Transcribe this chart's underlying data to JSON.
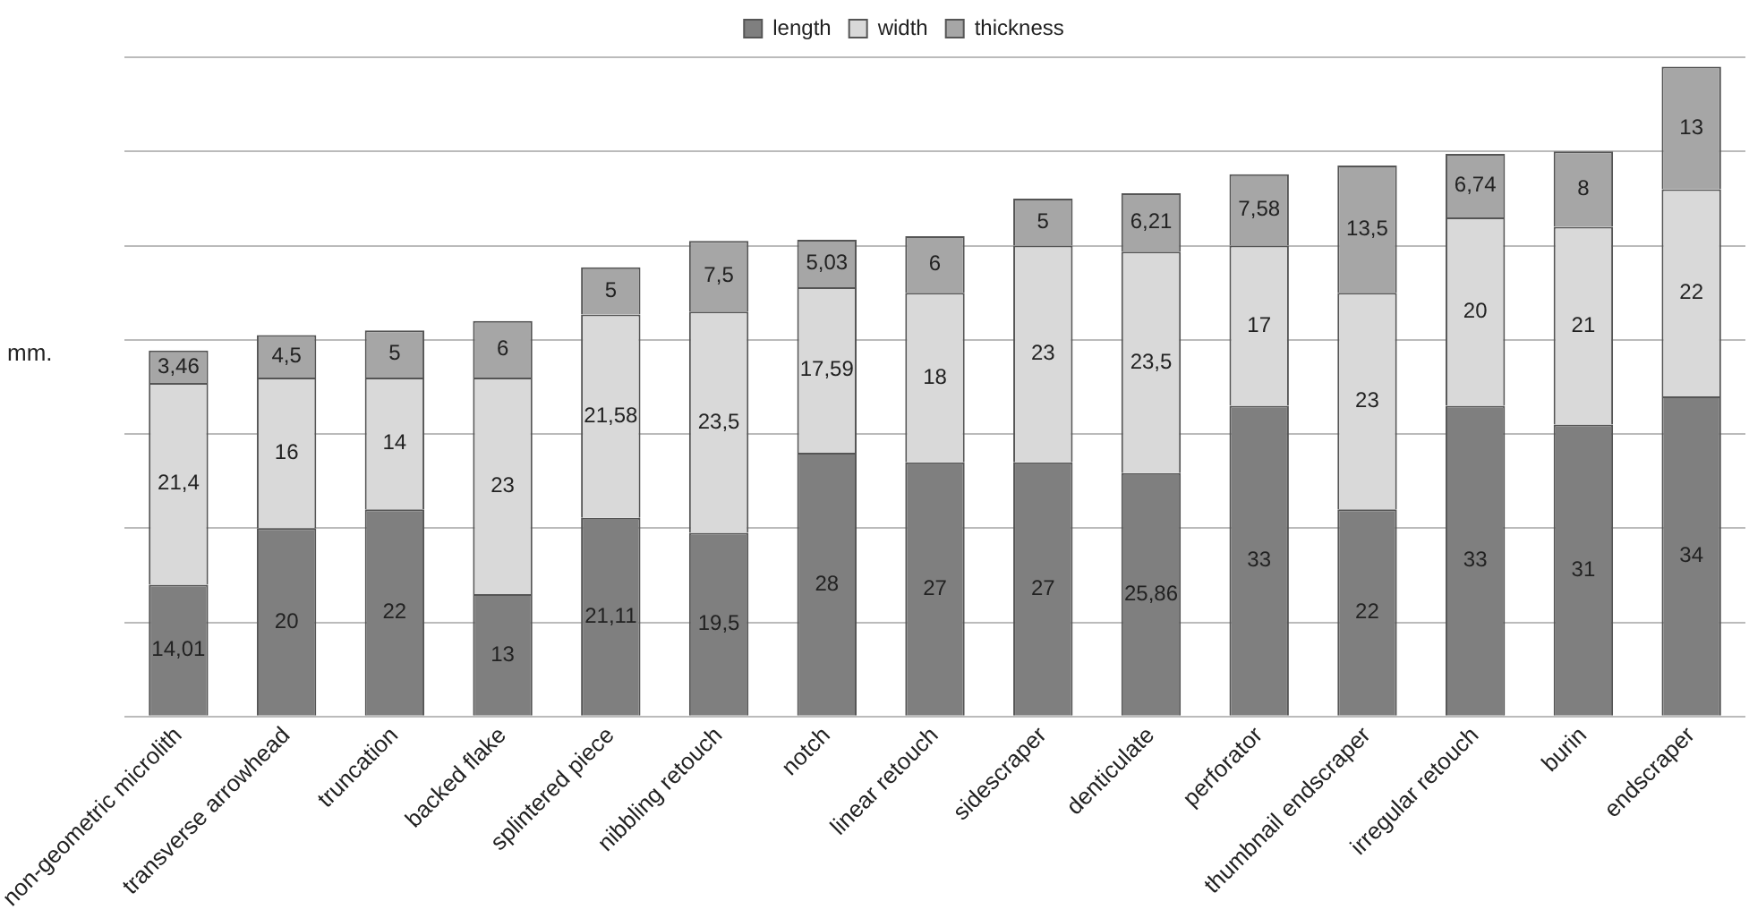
{
  "chart_data": {
    "type": "bar",
    "stacked": true,
    "ylabel": "mm.",
    "legend": "top",
    "grid": "y",
    "tick_labels": "x",
    "categories": [
      "non-geometric microlith",
      "transverse arrowhead",
      "truncation",
      "backed flake",
      "splintered piece",
      "nibbling retouch",
      "notch",
      "linear retouch",
      "sidescraper",
      "denticulate",
      "perforator",
      "thumbnail endscraper",
      "irregular retouch",
      "burin",
      "endscraper"
    ],
    "ylim": [
      0,
      70
    ],
    "series": [
      {
        "name": "length",
        "color": "#7f7f7f",
        "values": [
          14.01,
          20,
          22,
          13,
          21.11,
          19.5,
          28,
          27,
          27,
          25.86,
          33,
          22,
          33,
          31,
          34
        ],
        "value_labels": [
          "14,01",
          "20",
          "22",
          "13",
          "21,11",
          "19,5",
          "28",
          "27",
          "27",
          "25,86",
          "33",
          "22",
          "33",
          "31",
          "34"
        ]
      },
      {
        "name": "width",
        "color": "#d9d9d9",
        "values": [
          21.4,
          16,
          14,
          23,
          21.58,
          23.5,
          17.59,
          18,
          23,
          23.5,
          17,
          23,
          20,
          21,
          22
        ],
        "value_labels": [
          "21,4",
          "16",
          "14",
          "23",
          "21,58",
          "23,5",
          "17,59",
          "18",
          "23",
          "23,5",
          "17",
          "23",
          "20",
          "21",
          "22"
        ]
      },
      {
        "name": "thickness",
        "color": "#a6a6a6",
        "values": [
          3.46,
          4.5,
          5,
          6,
          5,
          7.5,
          5.03,
          6,
          5,
          6.21,
          7.58,
          13.5,
          6.74,
          8,
          13
        ],
        "value_labels": [
          "3,46",
          "4,5",
          "5",
          "6",
          "5",
          "7,5",
          "5,03",
          "6",
          "5",
          "6,21",
          "7,58",
          "13,5",
          "6,74",
          "8",
          "13"
        ]
      }
    ]
  }
}
